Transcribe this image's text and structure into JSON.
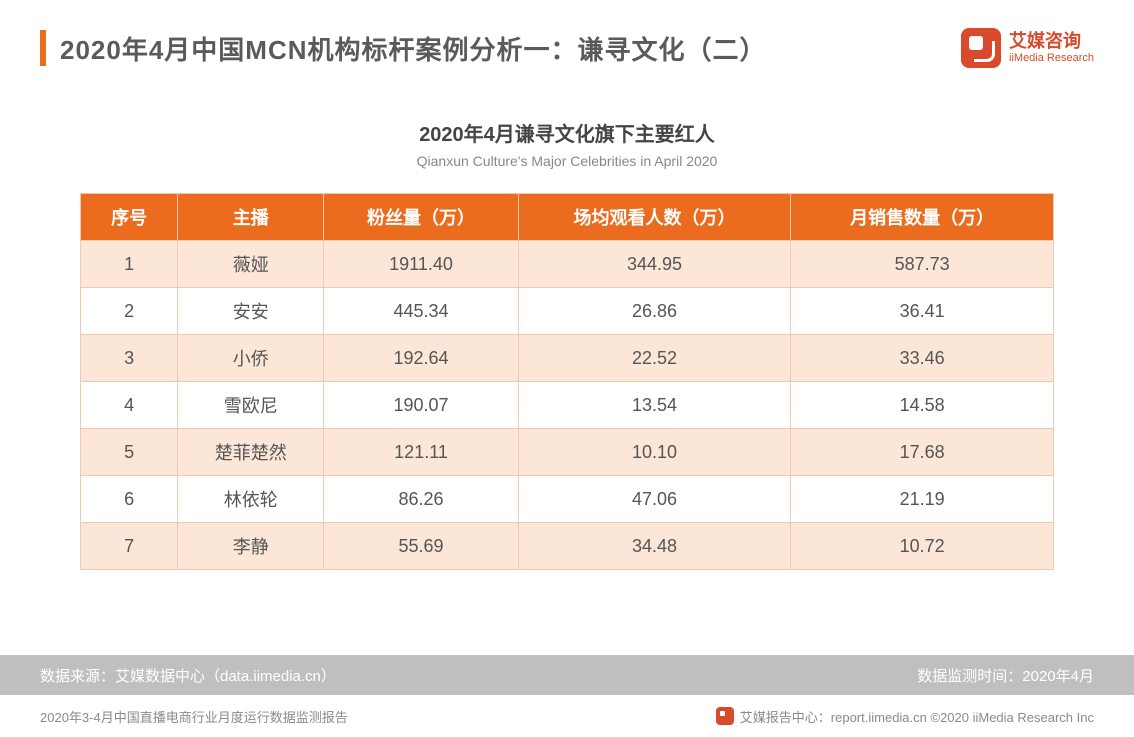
{
  "header": {
    "title": "2020年4月中国MCN机构标杆案例分析一：谦寻文化（二）",
    "accent_color": "#ec6c1f",
    "title_color": "#5a5a5a",
    "title_fontsize": 26
  },
  "brand": {
    "logo_color": "#d84a2b",
    "name_cn": "艾媒咨询",
    "name_en": "iiMedia Research"
  },
  "table": {
    "type": "table",
    "title_cn": "2020年4月谦寻文化旗下主要红人",
    "title_en": "Qianxun Culture's Major Celebrities in April 2020",
    "title_fontsize": 20,
    "subtitle_fontsize": 14,
    "header_bg": "#ec6c1f",
    "header_fg": "#ffffff",
    "row_odd_bg": "#fbe6d7",
    "row_even_bg": "#ffffff",
    "border_color": "#f0c9ae",
    "cell_fontsize": 18,
    "columns": [
      {
        "key": "seq",
        "label": "序号",
        "width_pct": 10
      },
      {
        "key": "name",
        "label": "主播",
        "width_pct": 15
      },
      {
        "key": "fans",
        "label": "粉丝量（万）",
        "width_pct": 20
      },
      {
        "key": "views",
        "label": "场均观看人数（万）",
        "width_pct": 28
      },
      {
        "key": "sales",
        "label": "月销售数量（万）",
        "width_pct": 27
      }
    ],
    "rows": [
      {
        "seq": "1",
        "name": "薇娅",
        "fans": "1911.40",
        "views": "344.95",
        "sales": "587.73"
      },
      {
        "seq": "2",
        "name": "安安",
        "fans": "445.34",
        "views": "26.86",
        "sales": "36.41"
      },
      {
        "seq": "3",
        "name": "小侨",
        "fans": "192.64",
        "views": "22.52",
        "sales": "33.46"
      },
      {
        "seq": "4",
        "name": "雪欧尼",
        "fans": "190.07",
        "views": "13.54",
        "sales": "14.58"
      },
      {
        "seq": "5",
        "name": "楚菲楚然",
        "fans": "121.11",
        "views": "10.10",
        "sales": "17.68"
      },
      {
        "seq": "6",
        "name": "林依轮",
        "fans": "86.26",
        "views": "47.06",
        "sales": "21.19"
      },
      {
        "seq": "7",
        "name": "李静",
        "fans": "55.69",
        "views": "34.48",
        "sales": "10.72"
      }
    ]
  },
  "source_bar": {
    "bg": "#bfbfbf",
    "fg": "#ffffff",
    "left": "数据来源：艾媒数据中心（data.iimedia.cn）",
    "right": "数据监测时间：2020年4月"
  },
  "footer": {
    "left": "2020年3-4月中国直播电商行业月度运行数据监测报告",
    "right": "艾媒报告中心：report.iimedia.cn   ©2020  iiMedia Research Inc",
    "color": "#8a8a8a",
    "fontsize": 13
  }
}
